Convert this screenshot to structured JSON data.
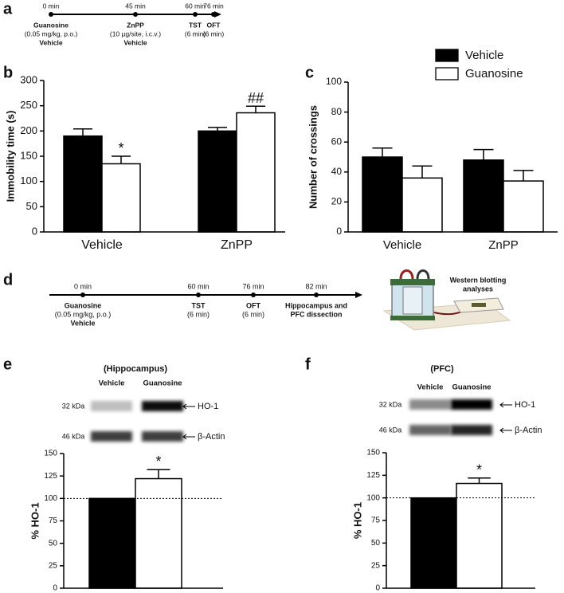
{
  "panels": [
    "a",
    "b",
    "c",
    "d",
    "e",
    "f"
  ],
  "timelines": [
    {
      "events": [
        {
          "time": "0 min",
          "lines": [
            "Guanosine",
            "(0.05 mg/kg, p.o.)",
            "Vehicle"
          ]
        },
        {
          "time": "45 min",
          "lines": [
            "ZnPP",
            "(10 µg/site, i.c.v.)",
            "Vehicle"
          ]
        },
        {
          "time": "60 min",
          "lines": [
            "TST",
            "(6 min)"
          ]
        },
        {
          "time": "76 min",
          "lines": [
            "OFT",
            "(6 min)"
          ]
        }
      ]
    },
    {
      "events": [
        {
          "time": "0 min",
          "lines": [
            "Guanosine",
            "(0.05 mg/kg, p.o.)",
            "Vehicle"
          ]
        },
        {
          "time": "60 min",
          "lines": [
            "TST",
            "(6 min)"
          ]
        },
        {
          "time": "76 min",
          "lines": [
            "OFT",
            "(6 min)"
          ]
        },
        {
          "time": "82 min",
          "lines": [
            "Hippocampus and",
            "PFC dissection"
          ]
        }
      ]
    }
  ],
  "illustration": {
    "lines": [
      "Western blotting",
      "analyses"
    ]
  },
  "chart_data": [
    {
      "type": "bar",
      "y_label": "Immobility time (s)",
      "categories": [
        "Vehicle",
        "ZnPP"
      ],
      "ylim": [
        0,
        300
      ],
      "yticks": [
        0,
        50,
        100,
        150,
        200,
        250,
        300
      ],
      "series": [
        {
          "color": "#000000",
          "values": [
            190,
            200
          ],
          "errors": [
            14,
            7
          ]
        },
        {
          "color": "#ffffff",
          "values": [
            135,
            236
          ],
          "errors": [
            15,
            13
          ],
          "significance": [
            "*",
            "##"
          ]
        }
      ]
    },
    {
      "type": "bar",
      "y_label": "Number of crossings",
      "categories": [
        "Vehicle",
        "ZnPP"
      ],
      "legend": true,
      "ylim": [
        0,
        100
      ],
      "yticks": [
        0,
        20,
        40,
        60,
        80,
        100
      ],
      "series": [
        {
          "name": "Vehicle",
          "color": "#000000",
          "values": [
            50,
            48
          ],
          "errors": [
            6,
            7
          ]
        },
        {
          "name": "Guanosine",
          "color": "#ffffff",
          "values": [
            36,
            34
          ],
          "errors": [
            8,
            7
          ]
        }
      ]
    },
    {
      "type": "bar",
      "title": "(Hippocampus)",
      "y_label": "% HO-1",
      "categories": [
        null
      ],
      "ylim": [
        0,
        150
      ],
      "yticks": [
        0,
        25,
        50,
        75,
        100,
        125,
        150
      ],
      "reference_line": 100,
      "blot": [
        {
          "size": "32 kDa",
          "protein": "HO-1"
        },
        {
          "size": "46 kDa",
          "protein": "β-Actin"
        }
      ],
      "series": [
        {
          "name": "Vehicle",
          "color": "#000000",
          "values": [
            100
          ]
        },
        {
          "name": "Guanosine",
          "color": "#ffffff",
          "values": [
            122
          ],
          "errors": [
            10
          ],
          "significance": [
            "*"
          ]
        }
      ]
    },
    {
      "type": "bar",
      "title": "(PFC)",
      "y_label": "% HO-1",
      "categories": [
        null
      ],
      "ylim": [
        0,
        150
      ],
      "yticks": [
        0,
        25,
        50,
        75,
        100,
        125,
        150
      ],
      "reference_line": 100,
      "blot": [
        {
          "size": "32 kDa",
          "protein": "HO-1"
        },
        {
          "size": "46 kDa",
          "protein": "β-Actin"
        }
      ],
      "series": [
        {
          "name": "Vehicle",
          "color": "#000000",
          "values": [
            100
          ]
        },
        {
          "name": "Guanosine",
          "color": "#ffffff",
          "values": [
            116
          ],
          "errors": [
            6
          ],
          "significance": [
            "*"
          ]
        }
      ]
    }
  ]
}
